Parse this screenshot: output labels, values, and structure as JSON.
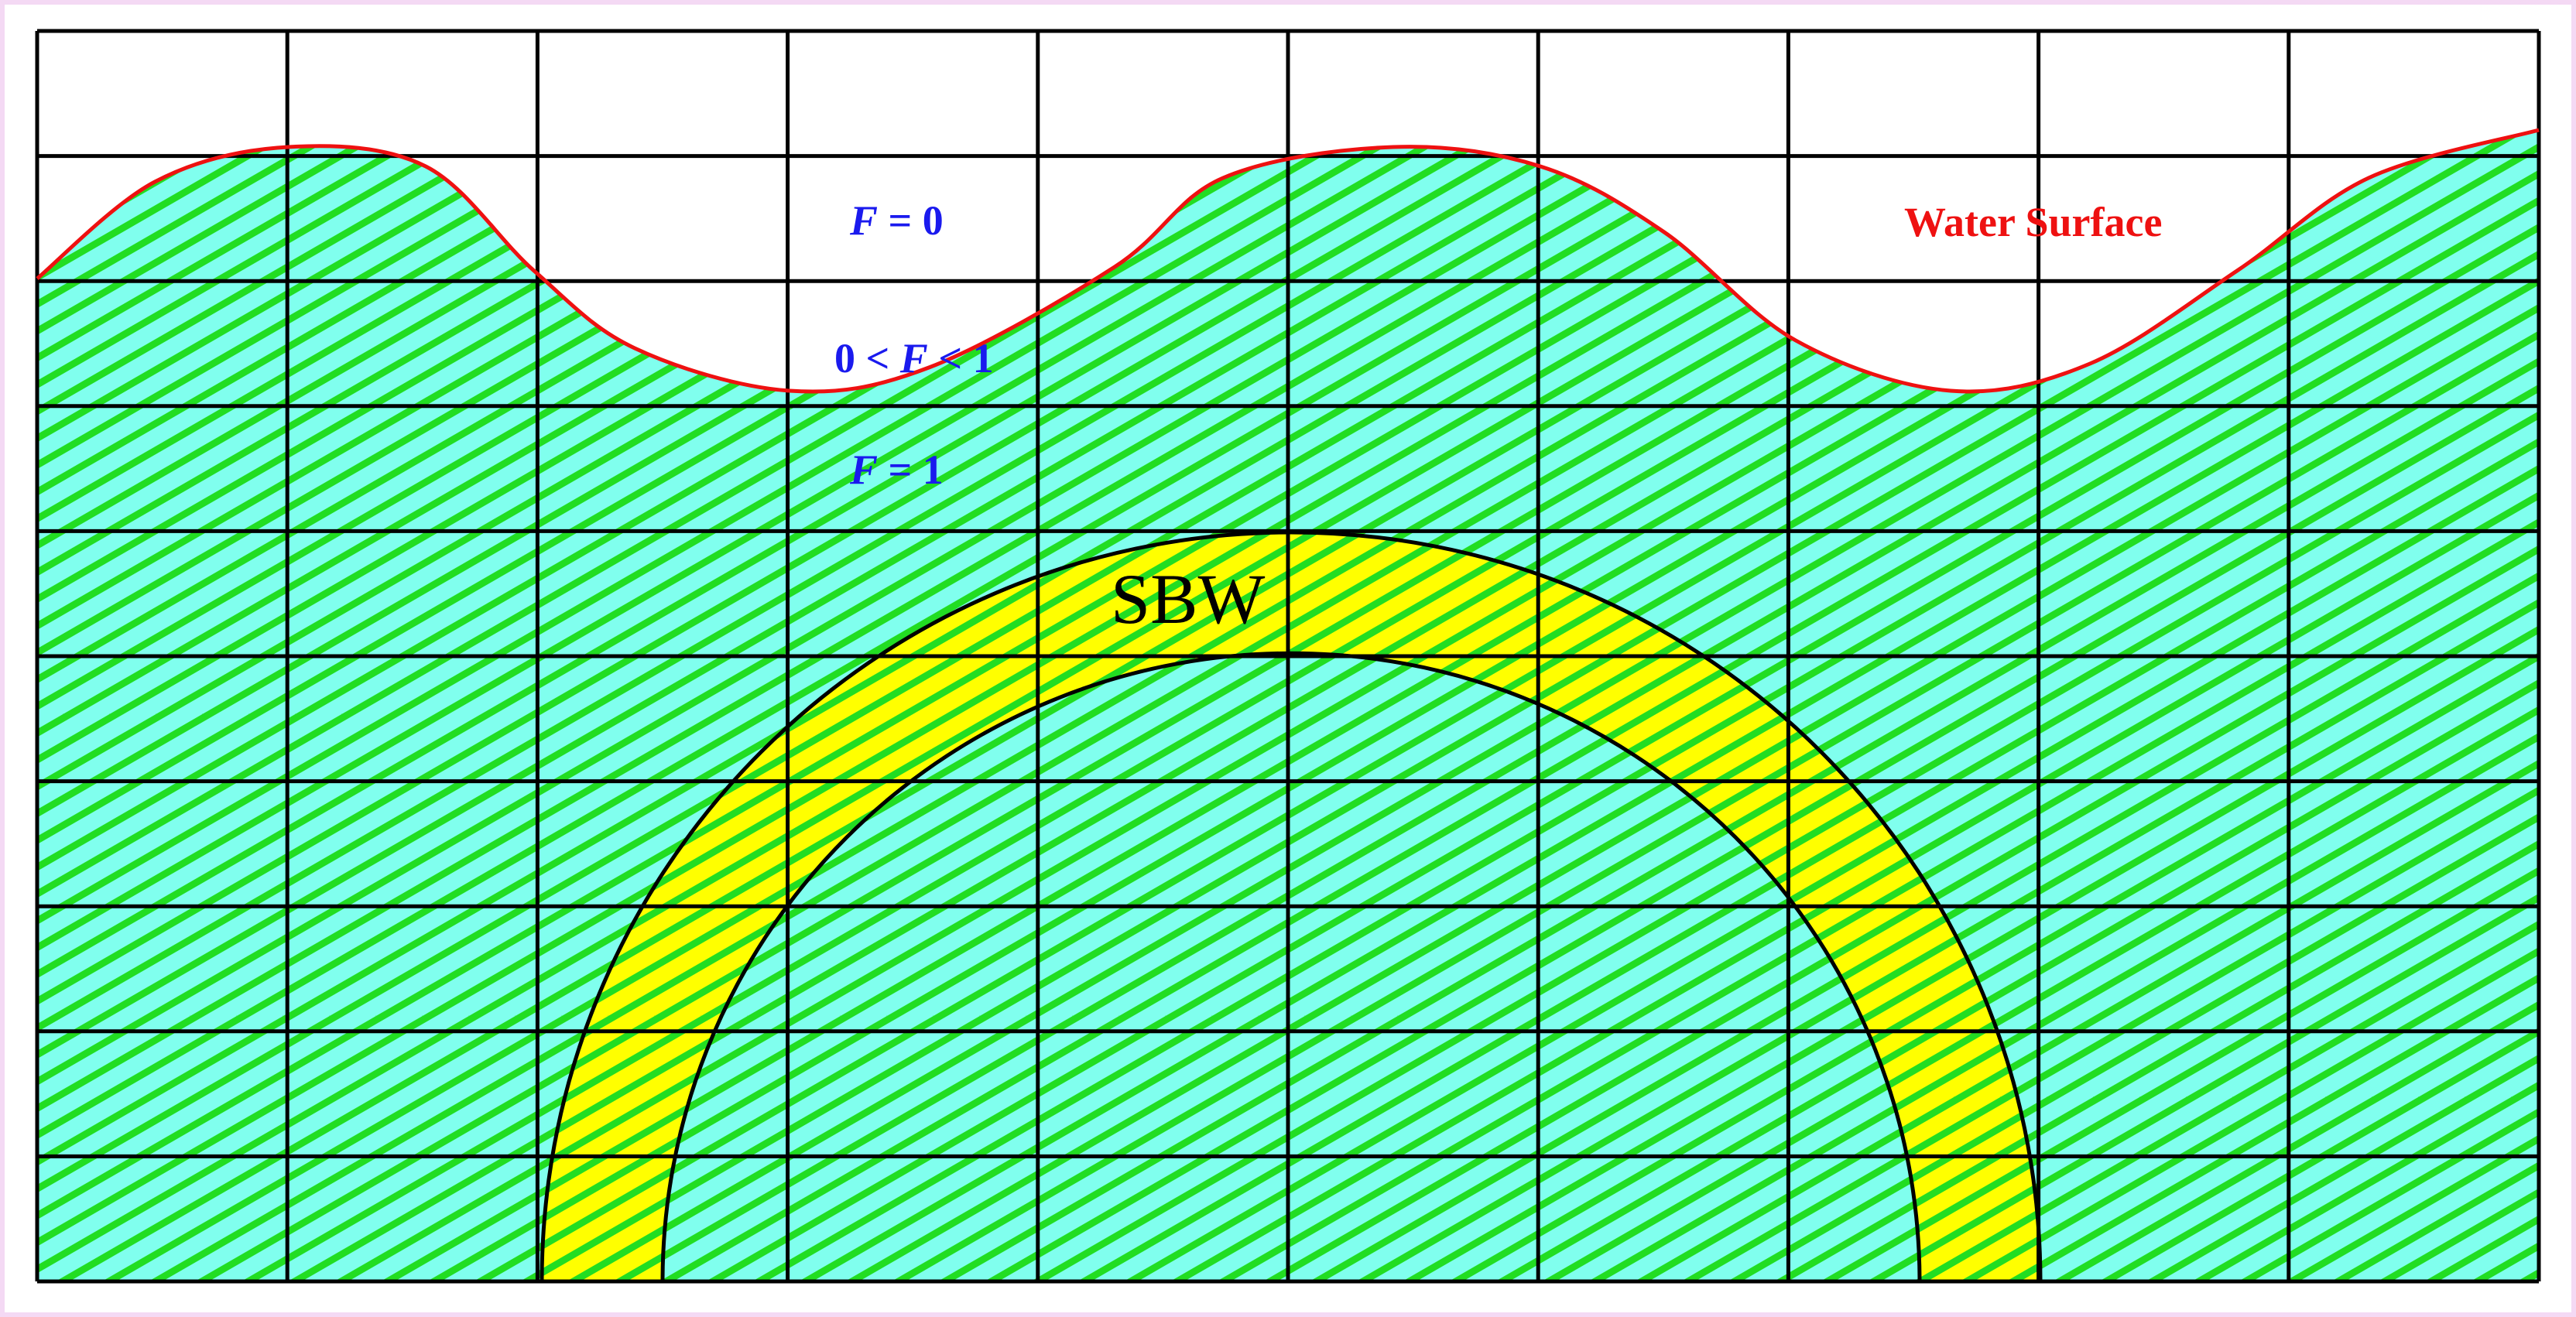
{
  "colors": {
    "water_fill": "#80ffee",
    "hatch": "#22dd22",
    "structure_fill": "#ffff00",
    "surface_line": "#ee1111",
    "grid_line": "#000000",
    "label_blue": "#1a1aee",
    "label_red": "#ee1111",
    "border_pink": "#f4d9f4"
  },
  "labels": {
    "f0_var": "F",
    "f0_rest": " = 0",
    "fmid_pre": "0 < ",
    "fmid_var": "F",
    "fmid_post": " < 1",
    "f1_var": "F",
    "f1_rest": " = 1",
    "water_surface": "Water Surface",
    "structure": "SBW"
  },
  "grid": {
    "columns": 10,
    "rows": 10
  }
}
